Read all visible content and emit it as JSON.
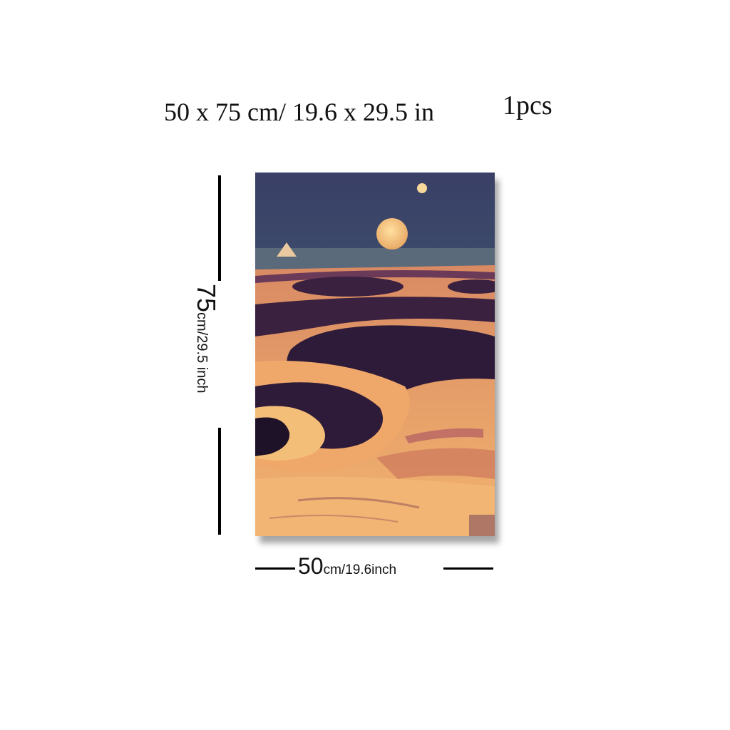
{
  "header": {
    "size_text": "50 x 75 cm/ 19.6 x 29.5 in",
    "quantity_text": "1pcs"
  },
  "dimensions": {
    "height_big": "75",
    "height_small": "cm/29.5 inch",
    "width_big": "50",
    "width_small": "cm/19.6inch"
  },
  "artwork": {
    "subject": "surreal desert landscape with two moons",
    "colors": {
      "sky_top": "#3a3f66",
      "sky_bottom": "#3e6a78",
      "sand_light": "#f0b070",
      "sand_mid": "#e88f5a",
      "shadow": "#2e1b3a",
      "moon": "#f6c77e"
    }
  }
}
